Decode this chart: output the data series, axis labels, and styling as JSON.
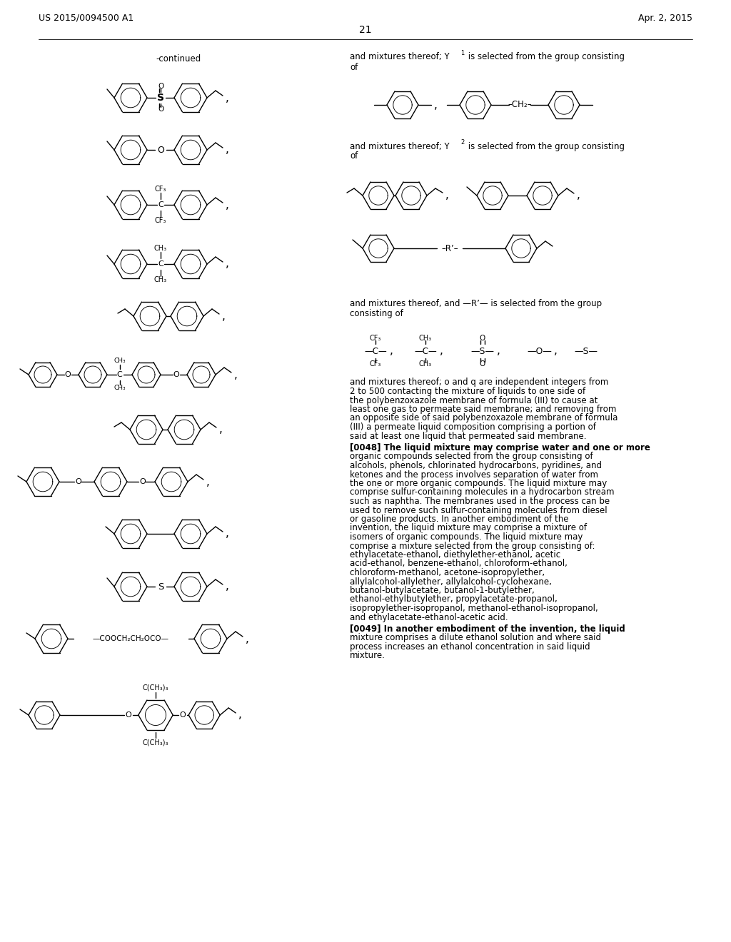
{
  "page_number": "21",
  "patent_number": "US 2015/0094500 A1",
  "patent_date": "Apr. 2, 2015",
  "bg_color": "#ffffff",
  "continued_label": "-continued",
  "right_text_1a": "and mixtures thereof; Y",
  "right_text_1b": " is selected from the group consisting",
  "right_text_1c": "of",
  "right_text_2a": "and mixtures thereof; Y",
  "right_text_2b": " is selected from the group consisting",
  "right_text_2c": "of",
  "right_text_3a": "and mixtures thereof, and —R’— is selected from the group",
  "right_text_3b": "consisting of",
  "para_intro": "and mixtures thereof; o and q are independent integers from 2 to 500 contacting the mixture of liquids to one side of the polybenzoxazole membrane of formula (III) to cause at least one gas to permeate said membrane; and removing from an opposite side of said polybenzoxazole membrane of formula (III) a permeate liquid composition comprising a portion of said at least one liquid that permeated said membrane.",
  "para_0048_tag": "[0048]",
  "para_0048_body": "   The liquid mixture may comprise water and one or more organic compounds selected from the group consisting of alcohols, phenols, chlorinated hydrocarbons, pyridines, and ketones and the process involves separation of water from the one or more organic compounds. The liquid mixture may comprise sulfur-containing molecules in a hydrocarbon stream such as naphtha. The membranes used in the process can be used to remove such sulfur-containing molecules from diesel or gasoline products. In another embodiment of the invention, the liquid mixture may comprise a mixture of isomers of organic compounds. The liquid mixture may comprise a mixture selected from the group consisting of: ethylacetate-ethanol, diethylether-ethanol, acetic acid-ethanol, benzene-ethanol, chloroform-ethanol, chloroform-methanol, acetone-isopropylether, allylalcohol-allylether, allylalcohol-cyclohexane, butanol-butylacetate, butanol-1-butylether, ethanol-ethylbutylether, propylacetate-propanol, isopropylether-isopropanol, methanol-ethanol-isopropanol, and ethylacetate-ethanol-acetic acid.",
  "para_0049_tag": "[0049]",
  "para_0049_body": "   In another embodiment of the invention, the liquid mixture comprises a dilute ethanol solution and where said process increases an ethanol concentration in said liquid mixture."
}
